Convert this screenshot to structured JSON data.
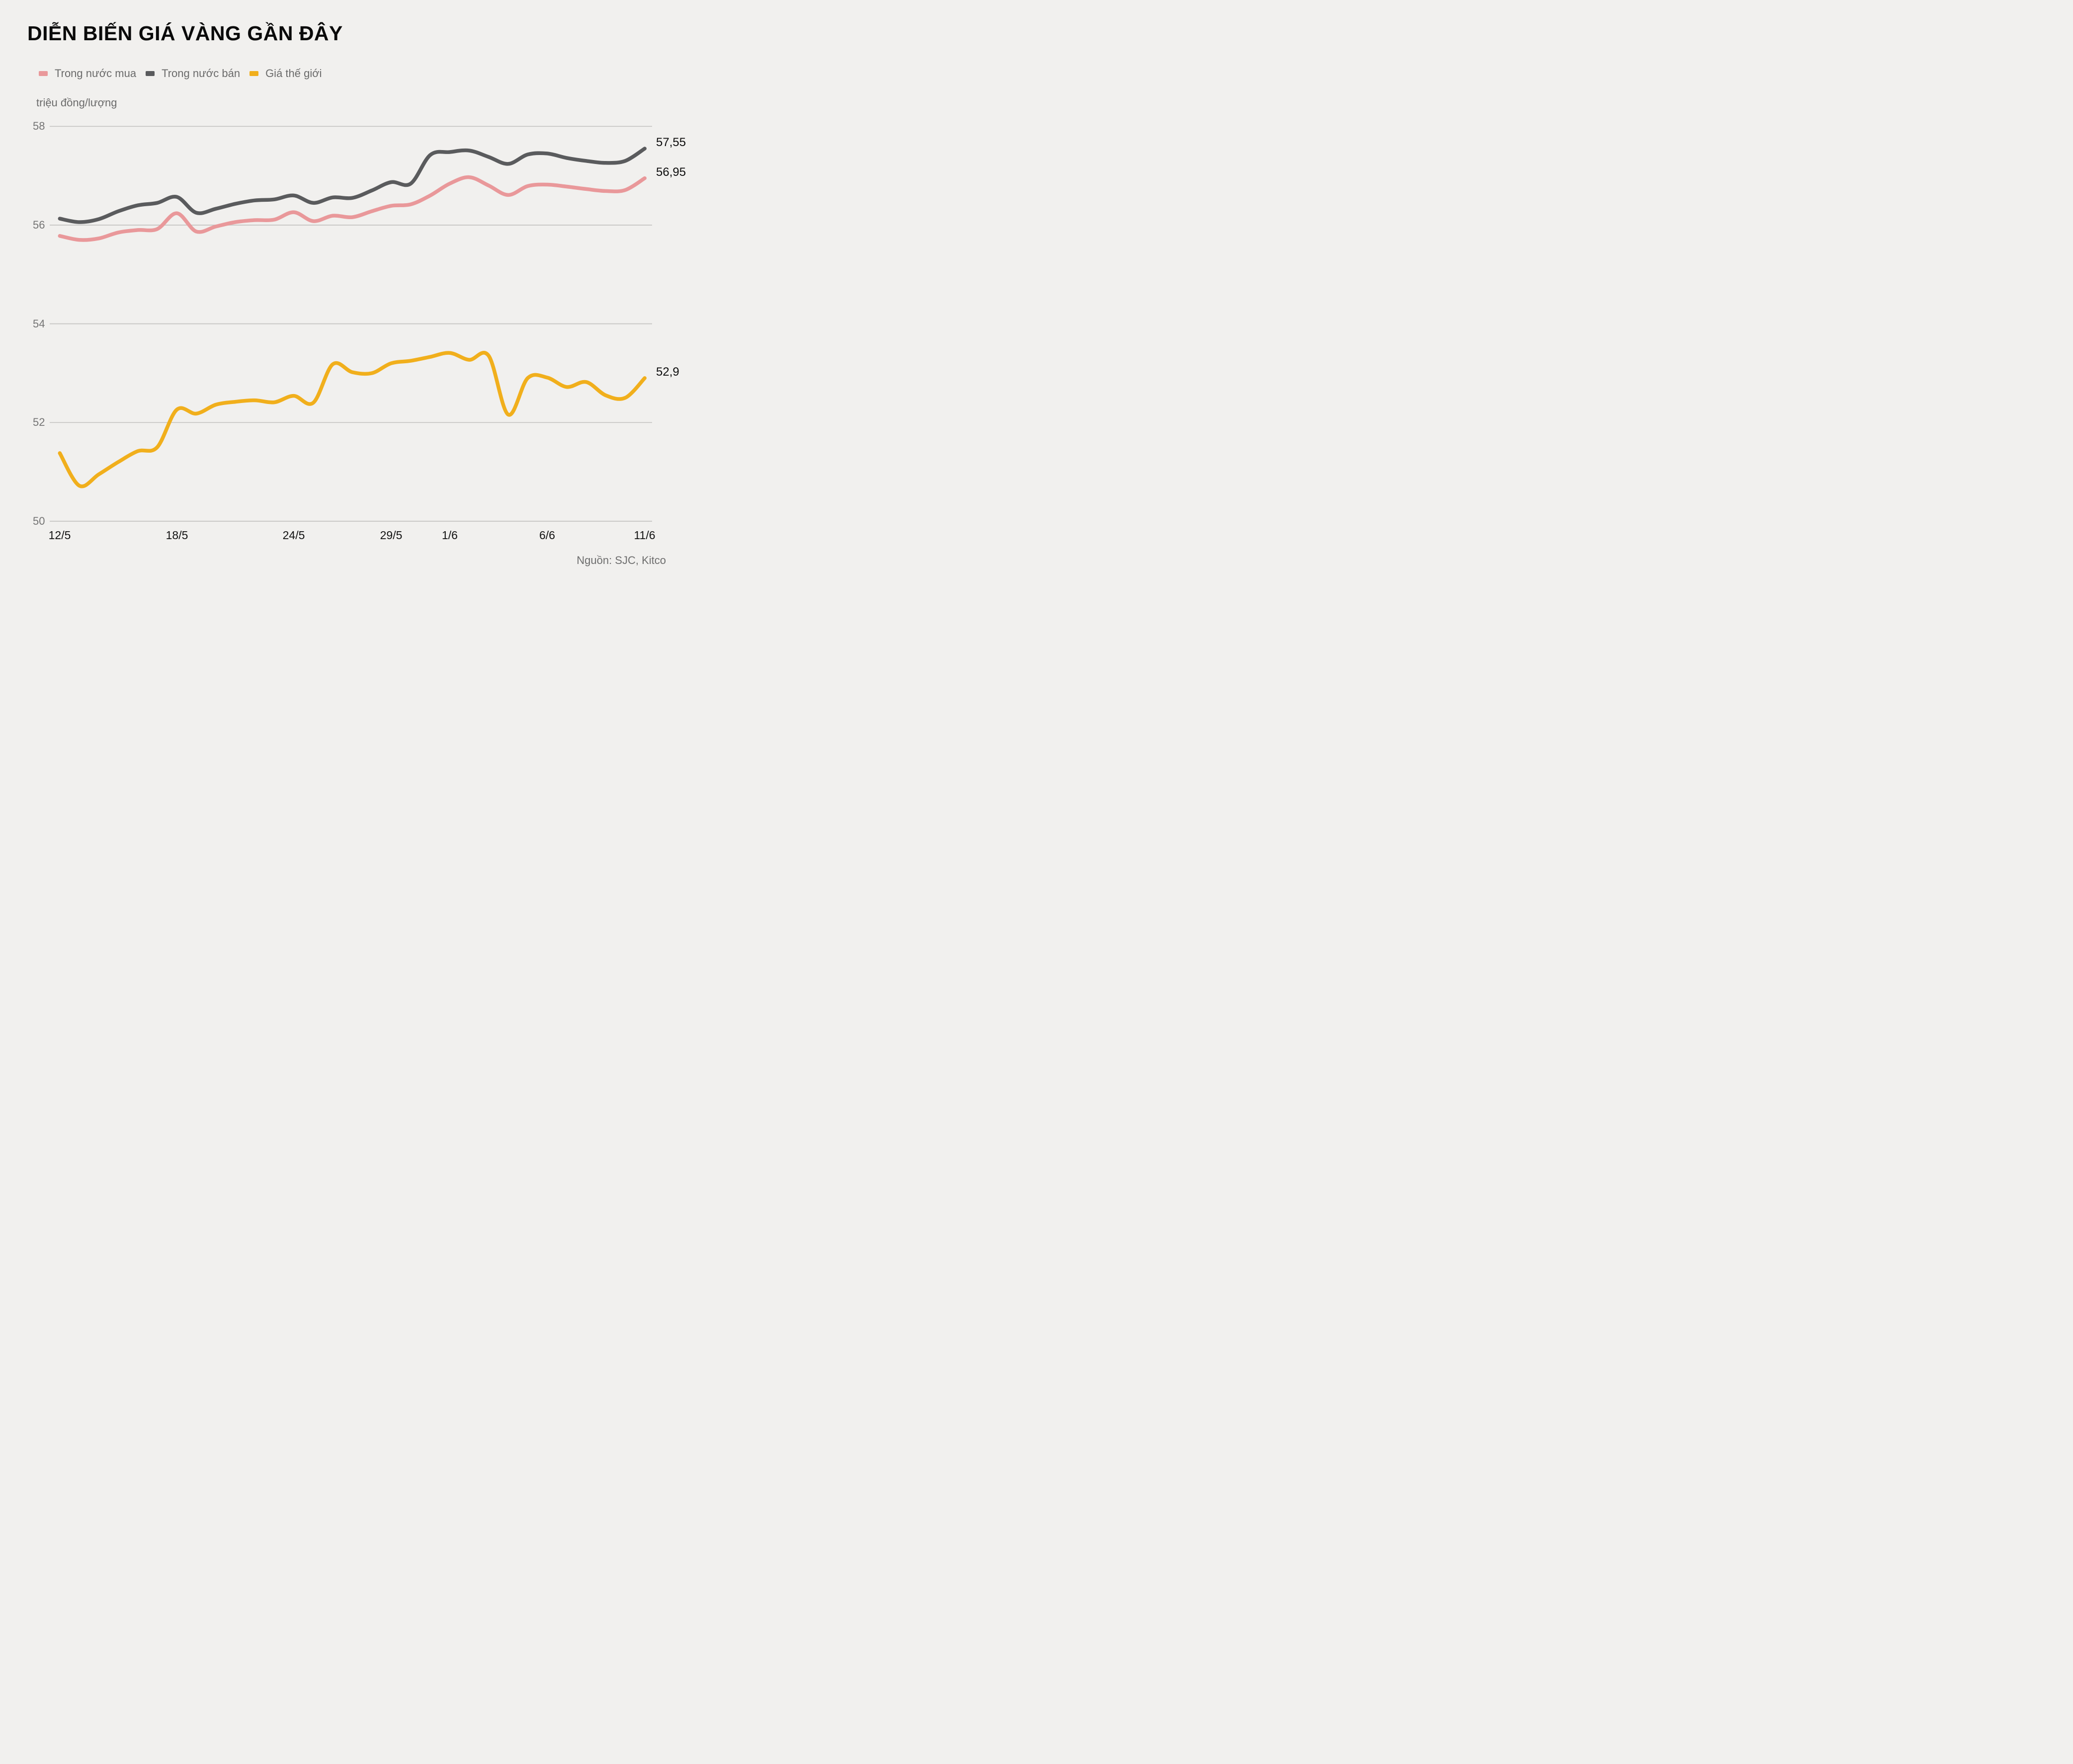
{
  "header": {
    "title": "DIỄN BIẾN GIÁ VÀNG GẦN ĐÂY"
  },
  "y_axis": {
    "unit_label": "triệu đồng/lượng"
  },
  "source": {
    "text": "Nguồn: SJC, Kitco"
  },
  "colors": {
    "background": "#f1f0ee",
    "gridline": "#c5c4c2",
    "title_text": "#0a0a0a",
    "legend_text": "#6b6b6b",
    "ytick_text": "#757575",
    "xtick_text": "#121212",
    "end_label_text": "#0e0e0e",
    "source_text": "#6e6e6e",
    "buy_line": "#e9989a",
    "sell_line": "#5a5b5d",
    "world_line": "#f1af1c"
  },
  "legend": {
    "items": [
      {
        "label": "Trong nước mua",
        "color": "#e9989a"
      },
      {
        "label": "Trong nước bán",
        "color": "#5a5b5d"
      },
      {
        "label": "Giá thế giới",
        "color": "#f1af1c"
      }
    ]
  },
  "chart_data": {
    "type": "line",
    "title": "DIỄN BIẾN GIÁ VÀNG GẦN ĐÂY",
    "ylabel": "triệu đồng/lượng",
    "ylim": [
      50,
      58.3
    ],
    "grid": true,
    "legend_position": "top-left",
    "x_unit": "days since 12/5",
    "x_range_days": [
      0,
      30
    ],
    "yticks": [
      {
        "label": "58",
        "value": 58
      },
      {
        "label": "56",
        "value": 56
      },
      {
        "label": "54",
        "value": 54
      },
      {
        "label": "52",
        "value": 52
      },
      {
        "label": "50",
        "value": 50
      }
    ],
    "xticks": [
      {
        "label": "12/5",
        "day": 0
      },
      {
        "label": "18/5",
        "day": 6
      },
      {
        "label": "24/5",
        "day": 12
      },
      {
        "label": "29/5",
        "day": 17
      },
      {
        "label": "1/6",
        "day": 20
      },
      {
        "label": "6/6",
        "day": 25
      },
      {
        "label": "11/6",
        "day": 30
      }
    ],
    "series": [
      {
        "name": "Trong nước mua",
        "color": "#e9989a",
        "end_label": "56,95",
        "end_value": 56.95,
        "values": [
          55.78,
          55.7,
          55.73,
          55.85,
          55.9,
          55.92,
          56.24,
          55.87,
          55.97,
          56.06,
          56.1,
          56.11,
          56.26,
          56.08,
          56.19,
          56.16,
          56.28,
          56.39,
          56.42,
          56.6,
          56.84,
          56.97,
          56.8,
          56.61,
          56.79,
          56.82,
          56.78,
          56.73,
          56.69,
          56.71,
          56.95
        ]
      },
      {
        "name": "Trong nước bán",
        "color": "#5a5b5d",
        "end_label": "57,55",
        "end_value": 57.55,
        "values": [
          56.13,
          56.06,
          56.12,
          56.28,
          56.4,
          56.45,
          56.57,
          56.25,
          56.33,
          56.43,
          56.5,
          56.52,
          56.6,
          56.45,
          56.56,
          56.55,
          56.7,
          56.87,
          56.84,
          57.42,
          57.48,
          57.51,
          57.38,
          57.24,
          57.43,
          57.45,
          57.36,
          57.3,
          57.26,
          57.3,
          57.55
        ]
      },
      {
        "name": "Giá thế giới",
        "color": "#f1af1c",
        "end_label": "52,9",
        "end_value": 52.9,
        "values": [
          51.38,
          50.72,
          50.95,
          51.2,
          51.42,
          51.5,
          52.26,
          52.18,
          52.36,
          52.42,
          52.45,
          52.41,
          52.54,
          52.4,
          53.18,
          53.02,
          53.0,
          53.2,
          53.25,
          53.33,
          53.41,
          53.27,
          53.35,
          52.16,
          52.9,
          52.91,
          52.72,
          52.82,
          52.55,
          52.5,
          52.9
        ]
      }
    ]
  }
}
